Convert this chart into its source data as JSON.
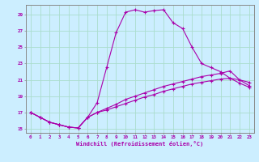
{
  "xlabel": "Windchill (Refroidissement éolien,°C)",
  "bg_color": "#cceeff",
  "line_color": "#aa00aa",
  "xlim": [
    -0.5,
    23.5
  ],
  "ylim": [
    14.5,
    30.2
  ],
  "xticks": [
    0,
    1,
    2,
    3,
    4,
    5,
    6,
    7,
    8,
    9,
    10,
    11,
    12,
    13,
    14,
    15,
    16,
    17,
    18,
    19,
    20,
    21,
    22,
    23
  ],
  "yticks": [
    15,
    17,
    19,
    21,
    23,
    25,
    27,
    29
  ],
  "grid_color": "#aaddcc",
  "line1_x": [
    0,
    1,
    2,
    3,
    4,
    5,
    6,
    7,
    8,
    9,
    10,
    11,
    12,
    13,
    14,
    15,
    16,
    17,
    18,
    19,
    20,
    21,
    22,
    23
  ],
  "line1_y": [
    17.0,
    16.4,
    15.8,
    15.5,
    15.2,
    15.1,
    16.4,
    18.2,
    22.5,
    26.8,
    29.3,
    29.6,
    29.3,
    29.5,
    29.6,
    28.0,
    27.3,
    25.0,
    23.0,
    22.5,
    22.0,
    21.2,
    21.0,
    20.7
  ],
  "line2_x": [
    0,
    1,
    2,
    3,
    4,
    5,
    6,
    7,
    8,
    9,
    10,
    11,
    12,
    13,
    14,
    15,
    16,
    17,
    18,
    19,
    20,
    21,
    22,
    23
  ],
  "line2_y": [
    17.0,
    16.4,
    15.8,
    15.5,
    15.2,
    15.1,
    16.4,
    17.0,
    17.5,
    18.0,
    18.6,
    19.0,
    19.4,
    19.8,
    20.2,
    20.5,
    20.8,
    21.1,
    21.4,
    21.6,
    21.8,
    22.1,
    21.0,
    20.3
  ],
  "line3_x": [
    0,
    1,
    2,
    3,
    4,
    5,
    6,
    7,
    8,
    9,
    10,
    11,
    12,
    13,
    14,
    15,
    16,
    17,
    18,
    19,
    20,
    21,
    22,
    23
  ],
  "line3_y": [
    17.0,
    16.4,
    15.8,
    15.5,
    15.2,
    15.1,
    16.4,
    17.0,
    17.3,
    17.7,
    18.1,
    18.5,
    18.9,
    19.2,
    19.6,
    19.9,
    20.2,
    20.5,
    20.7,
    20.9,
    21.1,
    21.2,
    20.6,
    20.1
  ]
}
